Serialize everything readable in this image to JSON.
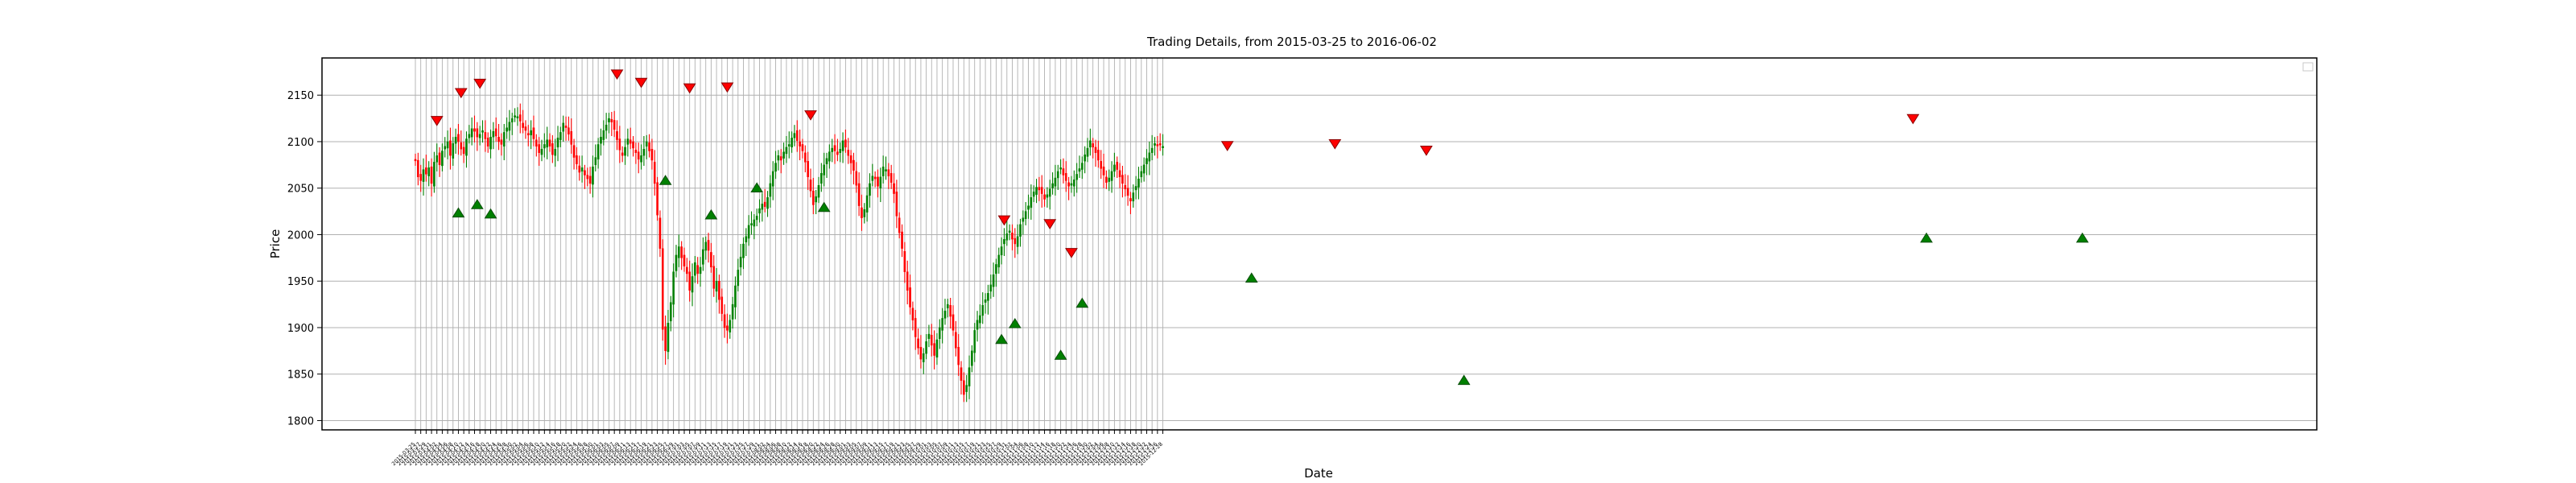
{
  "chart_data": {
    "type": "candlestick",
    "title": "Trading Details, from 2015-03-25 to 2016-06-02",
    "xlabel": "Date",
    "ylabel": "Price",
    "start_date": "2015-03-25",
    "end_date": "2016-06-02",
    "ylim": [
      1790,
      2190
    ],
    "yticks": [
      1800,
      1850,
      1900,
      1950,
      2000,
      2050,
      2100,
      2150
    ],
    "grid": true,
    "legend": {
      "placement": "top-right",
      "entries": []
    },
    "colors": {
      "up": "#008000",
      "down": "#ff0000",
      "sell_marker": "#ff0000",
      "buy_marker": "#008000",
      "grid": "#b0b0b0",
      "frame": "#000000",
      "text": "#000000"
    },
    "close_series": [
      2080,
      2062,
      2058,
      2070,
      2065,
      2072,
      2055,
      2078,
      2085,
      2075,
      2090,
      2095,
      2100,
      2085,
      2098,
      2105,
      2100,
      2092,
      2087,
      2103,
      2108,
      2114,
      2111,
      2105,
      2108,
      2112,
      2103,
      2095,
      2105,
      2111,
      2106,
      2100,
      2097,
      2110,
      2115,
      2121,
      2125,
      2128,
      2127,
      2122,
      2115,
      2112,
      2107,
      2112,
      2103,
      2095,
      2088,
      2092,
      2097,
      2102,
      2095,
      2086,
      2092,
      2104,
      2110,
      2120,
      2115,
      2108,
      2097,
      2083,
      2076,
      2067,
      2072,
      2064,
      2060,
      2055,
      2073,
      2083,
      2097,
      2105,
      2112,
      2118,
      2125,
      2121,
      2113,
      2102,
      2091,
      2085,
      2094,
      2103,
      2098,
      2093,
      2088,
      2081,
      2085,
      2092,
      2100,
      2090,
      2080,
      2055,
      2021,
      1985,
      1898,
      1875,
      1905,
      1927,
      1960,
      1978,
      1987,
      1975,
      1966,
      1958,
      1940,
      1955,
      1970,
      1958,
      1965,
      1984,
      1992,
      1983,
      1965,
      1942,
      1950,
      1930,
      1915,
      1900,
      1897,
      1908,
      1925,
      1945,
      1962,
      1976,
      1990,
      1998,
      2010,
      2012,
      2016,
      2020,
      2028,
      2033,
      2030,
      2040,
      2055,
      2068,
      2077,
      2085,
      2080,
      2089,
      2094,
      2097,
      2104,
      2109,
      2101,
      2095,
      2090,
      2078,
      2062,
      2047,
      2032,
      2041,
      2053,
      2066,
      2075,
      2082,
      2089,
      2093,
      2090,
      2086,
      2092,
      2101,
      2094,
      2085,
      2077,
      2069,
      2053,
      2031,
      2018,
      2027,
      2042,
      2055,
      2063,
      2060,
      2052,
      2062,
      2073,
      2070,
      2063,
      2056,
      2044,
      2020,
      2002,
      1985,
      1960,
      1940,
      1922,
      1908,
      1890,
      1878,
      1866,
      1872,
      1885,
      1893,
      1881,
      1870,
      1887,
      1900,
      1910,
      1918,
      1925,
      1912,
      1897,
      1878,
      1860,
      1843,
      1828,
      1838,
      1857,
      1875,
      1897,
      1908,
      1913,
      1924,
      1930,
      1937,
      1946,
      1957,
      1968,
      1978,
      1987,
      1995,
      2001,
      2004,
      1995,
      1990,
      1998,
      2011,
      2018,
      2025,
      2031,
      2040,
      2046,
      2051,
      2048,
      2044,
      2038,
      2043,
      2049,
      2055,
      2061,
      2068,
      2072,
      2064,
      2058,
      2052,
      2055,
      2059,
      2065,
      2071,
      2077,
      2086,
      2093,
      2101,
      2094,
      2088,
      2080,
      2071,
      2064,
      2056,
      2061,
      2068,
      2075,
      2070,
      2062,
      2055,
      2049,
      2042,
      2036,
      2045,
      2052,
      2060,
      2068,
      2075,
      2082,
      2088,
      2093,
      2098,
      2096,
      2097,
      2095
    ],
    "sell_signals": [
      {
        "index": 8,
        "value": 2122
      },
      {
        "index": 17,
        "value": 2152
      },
      {
        "index": 24,
        "value": 2162
      },
      {
        "index": 75,
        "value": 2172
      },
      {
        "index": 84,
        "value": 2163
      },
      {
        "index": 102,
        "value": 2157
      },
      {
        "index": 116,
        "value": 2158
      },
      {
        "index": 147,
        "value": 2128
      },
      {
        "index": 219,
        "value": 2015
      },
      {
        "index": 236,
        "value": 2011
      },
      {
        "index": 244,
        "value": 1980
      },
      {
        "index": 302,
        "value": 2095
      },
      {
        "index": 342,
        "value": 2097
      },
      {
        "index": 376,
        "value": 2090
      },
      {
        "index": 557,
        "value": 2124
      }
    ],
    "buy_signals": [
      {
        "index": 16,
        "value": 2024
      },
      {
        "index": 23,
        "value": 2033
      },
      {
        "index": 28,
        "value": 2023
      },
      {
        "index": 93,
        "value": 2059
      },
      {
        "index": 110,
        "value": 2022
      },
      {
        "index": 127,
        "value": 2051
      },
      {
        "index": 152,
        "value": 2030
      },
      {
        "index": 218,
        "value": 1888
      },
      {
        "index": 223,
        "value": 1905
      },
      {
        "index": 240,
        "value": 1871
      },
      {
        "index": 248,
        "value": 1927
      },
      {
        "index": 311,
        "value": 1954
      },
      {
        "index": 390,
        "value": 1844
      },
      {
        "index": 562,
        "value": 1997
      },
      {
        "index": 620,
        "value": 1997
      }
    ]
  }
}
